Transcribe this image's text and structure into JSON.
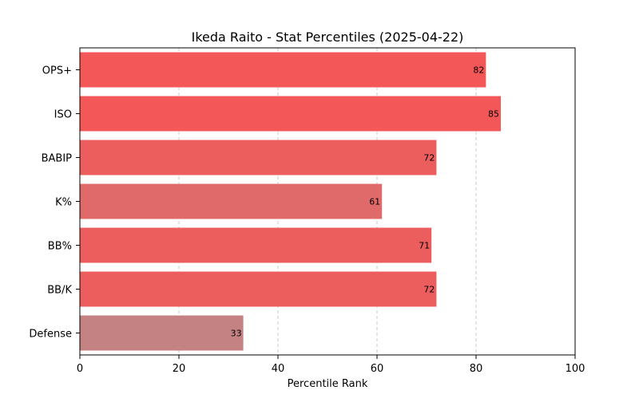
{
  "chart_data": {
    "type": "bar",
    "orientation": "horizontal",
    "title": "Ikeda Raito - Stat Percentiles (2025-04-22)",
    "xlabel": "Percentile Rank",
    "ylabel": "",
    "xlim": [
      0,
      100
    ],
    "xticks": [
      0,
      20,
      40,
      60,
      80,
      100
    ],
    "grid": "x-dashed",
    "categories": [
      "OPS+",
      "ISO",
      "BABIP",
      "K%",
      "BB%",
      "BB/K",
      "Defense"
    ],
    "values": [
      82,
      85,
      72,
      61,
      71,
      72,
      33
    ],
    "colors": [
      "#f45757",
      "#f45757",
      "#ec5e5e",
      "#e06969",
      "#ec5e5e",
      "#ec5e5e",
      "#c48282"
    ]
  }
}
